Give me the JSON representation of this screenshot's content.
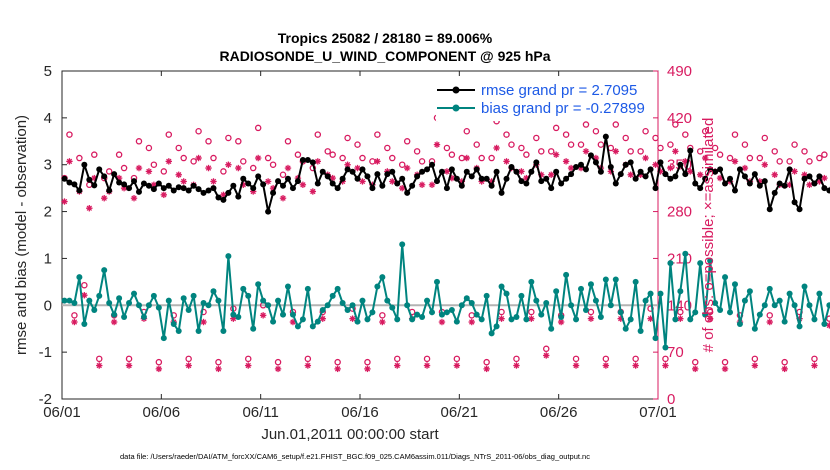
{
  "chart_data": {
    "type": "line",
    "title": "Tropics 25082 / 28180 = 89.006%",
    "subtitle": "RADIOSONDE_U_WIND_COMPONENT @ 925 hPa",
    "xlabel": "Jun.01,2011 00:00:00 start",
    "ylabel": "rmse and bias (model - observation)",
    "y2label": "# of obs: o=possible; ×=assimilated",
    "footer": "data file: /Users/raeder/DAI/ATM_forcXX/CAM6_setup/f.e21.FHIST_BGC.f09_025.CAM6assim.011/Diags_NTrS_2011-06/obs_diag_output.nc",
    "xlim": [
      0,
      30
    ],
    "ylim": [
      -2,
      5
    ],
    "y2lim": [
      0,
      490
    ],
    "x_ticks": [
      0,
      5,
      10,
      15,
      20,
      25,
      30
    ],
    "x_tick_labels": [
      "06/01",
      "06/06",
      "06/11",
      "06/16",
      "06/21",
      "06/26",
      "07/01"
    ],
    "y_ticks": [
      -2,
      -1,
      0,
      1,
      2,
      3,
      4,
      5
    ],
    "y_tick_labels": [
      "-2",
      "-1",
      "0",
      "1",
      "2",
      "3",
      "4",
      "5"
    ],
    "y2_ticks": [
      0,
      70,
      140,
      210,
      280,
      350,
      420,
      490
    ],
    "y2_tick_labels": [
      "0",
      "70",
      "140",
      "210",
      "280",
      "350",
      "420",
      "490"
    ],
    "reference_line_y": 0,
    "legend": {
      "placement": "top-right",
      "entries": [
        "rmse grand pr = 2.7095",
        "bias grand pr = -0.27899"
      ]
    },
    "colors": {
      "rmse": "#000000",
      "bias": "#00847f",
      "obs": "#d81b60",
      "legend_text": "#1d5ae6",
      "zero_line": "#b3b3b3"
    },
    "x_step_days": 0.25,
    "series": [
      {
        "name": "rmse grand pr = 2.7095",
        "axis": "left",
        "marker": "filled-circle",
        "values": [
          2.7,
          2.62,
          2.58,
          2.45,
          3.0,
          2.68,
          2.56,
          2.9,
          2.75,
          2.45,
          2.8,
          2.62,
          2.58,
          2.5,
          2.65,
          2.42,
          2.6,
          2.55,
          2.48,
          2.6,
          2.5,
          2.55,
          2.45,
          2.52,
          2.5,
          2.45,
          2.55,
          2.48,
          2.4,
          2.45,
          2.5,
          2.3,
          2.25,
          2.4,
          2.55,
          2.32,
          2.7,
          2.6,
          2.5,
          2.75,
          2.58,
          2.0,
          2.4,
          2.65,
          2.55,
          2.7,
          2.5,
          2.65,
          3.1,
          3.1,
          3.05,
          2.6,
          2.85,
          2.75,
          2.6,
          2.5,
          2.7,
          2.9,
          2.85,
          2.7,
          2.9,
          2.75,
          2.5,
          2.8,
          2.55,
          2.8,
          2.85,
          2.6,
          2.7,
          2.4,
          2.55,
          2.75,
          2.85,
          2.9,
          3.0,
          2.65,
          2.85,
          2.5,
          2.9,
          2.7,
          2.55,
          2.85,
          2.75,
          2.9,
          2.7,
          2.7,
          2.55,
          2.85,
          2.4,
          2.7,
          2.95,
          2.85,
          2.65,
          2.6,
          2.85,
          3.05,
          2.65,
          2.7,
          2.5,
          2.85,
          2.6,
          2.7,
          2.8,
          2.95,
          3.0,
          2.9,
          3.2,
          3.05,
          2.85,
          3.6,
          2.95,
          2.6,
          2.8,
          3.0,
          3.05,
          2.7,
          2.85,
          2.75,
          2.9,
          2.5,
          3.05,
          2.8,
          2.7,
          2.75,
          3.0,
          2.8,
          3.3,
          2.6,
          2.5,
          2.7,
          2.9,
          2.85,
          2.9,
          2.6,
          2.7,
          2.45,
          2.9,
          2.75,
          2.6,
          2.8,
          2.55,
          2.65,
          2.05,
          2.4,
          2.6,
          2.55,
          2.9,
          2.2,
          2.05,
          2.7,
          2.75,
          2.6,
          2.75,
          2.5,
          2.45,
          2.7,
          2.75,
          2.75,
          2.7,
          2.65,
          2.7,
          2.8,
          2.6,
          2.7,
          2.55,
          2.3,
          2.5
        ]
      },
      {
        "name": "bias grand pr = -0.27899",
        "axis": "left",
        "marker": "filled-circle",
        "values": [
          0.1,
          0.1,
          0.05,
          0.6,
          -0.4,
          0.1,
          -0.1,
          0.2,
          0.75,
          0.05,
          -0.2,
          0.15,
          -0.25,
          0.05,
          0.25,
          0.0,
          -0.25,
          0.0,
          0.2,
          -0.05,
          -0.7,
          0.1,
          -0.4,
          -0.55,
          0.15,
          -0.1,
          0.2,
          -0.55,
          0.05,
          0.0,
          0.3,
          0.1,
          -0.55,
          1.05,
          -0.2,
          -0.25,
          0.35,
          0.2,
          -0.5,
          0.45,
          0.1,
          0.0,
          -0.35,
          0.1,
          -0.2,
          0.4,
          -0.2,
          -0.45,
          -0.3,
          0.35,
          -0.45,
          -0.35,
          -0.1,
          0.0,
          0.2,
          0.35,
          0.05,
          -0.1,
          0.0,
          -0.35,
          0.1,
          -0.3,
          -0.15,
          0.4,
          0.6,
          0.1,
          -0.05,
          -0.3,
          1.3,
          0.0,
          -0.3,
          -0.2,
          -0.25,
          0.1,
          -0.15,
          0.5,
          -0.2,
          -0.15,
          -0.1,
          -0.35,
          0.0,
          0.15,
          0.05,
          -0.2,
          -0.3,
          0.2,
          -0.6,
          -0.45,
          0.4,
          0.25,
          -0.3,
          -0.25,
          0.2,
          -0.3,
          0.5,
          0.1,
          -0.2,
          0.05,
          -0.5,
          0.3,
          -0.25,
          0.65,
          0.0,
          -0.3,
          0.35,
          -0.1,
          0.45,
          0.1,
          -0.25,
          0.55,
          0.0,
          0.55,
          -0.15,
          -0.5,
          -0.3,
          0.5,
          -0.55,
          0.1,
          0.25,
          -0.7,
          0.25,
          -0.9,
          0.9,
          -0.3,
          0.3,
          1.1,
          -0.3,
          -0.15,
          0.9,
          -0.2,
          0.95,
          0.05,
          -0.1,
          0.6,
          -0.15,
          0.45,
          -0.4,
          0.1,
          0.3,
          -0.5,
          -0.2,
          0.0,
          0.35,
          0.0,
          0.1,
          -0.35,
          0.25,
          0.0,
          -0.45,
          0.4,
          0.0,
          -0.3,
          0.25,
          -0.4,
          0.0,
          0.1,
          -0.2,
          0.3,
          -0.3,
          0.05,
          -0.25,
          0.1,
          -0.2,
          -0.2,
          -0.25
        ]
      },
      {
        "name": "possible",
        "axis": "right",
        "marker": "open-circle",
        "values": [
          330,
          395,
          125,
          360,
          170,
          320,
          365,
          60,
          330,
          340,
          125,
          365,
          345,
          60,
          330,
          385,
          130,
          375,
          350,
          55,
          340,
          395,
          125,
          375,
          360,
          60,
          355,
          400,
          130,
          385,
          360,
          55,
          340,
          390,
          135,
          385,
          355,
          60,
          345,
          405,
          140,
          360,
          350,
          55,
          335,
          385,
          130,
          365,
          355,
          60,
          345,
          395,
          130,
          370,
          365,
          55,
          360,
          390,
          135,
          380,
          360,
          55,
          355,
          395,
          125,
          375,
          360,
          60,
          350,
          385,
          130,
          370,
          355,
          60,
          355,
          420,
          130,
          375,
          365,
          60,
          360,
          400,
          125,
          380,
          360,
          55,
          360,
          415,
          130,
          395,
          380,
          60,
          375,
          365,
          130,
          390,
          370,
          75,
          370,
          405,
          125,
          395,
          380,
          60,
          380,
          410,
          130,
          400,
          380,
          60,
          375,
          410,
          130,
          390,
          370,
          60,
          370,
          400,
          135,
          390,
          375,
          60,
          380,
          410,
          130,
          395,
          375,
          55,
          370,
          400,
          130,
          375,
          365,
          55,
          360,
          395,
          125,
          380,
          360,
          60,
          360,
          390,
          125,
          370,
          355,
          55,
          355,
          380,
          130,
          370,
          355,
          60,
          360,
          365,
          120,
          370,
          350,
          45,
          335,
          365,
          125,
          355,
          345,
          55,
          340,
          360,
          20,
          355
        ]
      },
      {
        "name": "assimilated",
        "axis": "right",
        "marker": "asterisk",
        "values": [
          295,
          355,
          115,
          310,
          155,
          285,
          330,
          50,
          300,
          310,
          115,
          330,
          315,
          50,
          300,
          345,
          120,
          340,
          320,
          45,
          305,
          355,
          115,
          335,
          325,
          50,
          320,
          360,
          115,
          345,
          325,
          45,
          305,
          350,
          120,
          345,
          320,
          50,
          310,
          360,
          125,
          325,
          315,
          45,
          300,
          345,
          115,
          330,
          320,
          50,
          310,
          355,
          120,
          335,
          330,
          45,
          325,
          350,
          120,
          345,
          325,
          45,
          320,
          355,
          115,
          340,
          325,
          50,
          315,
          345,
          120,
          335,
          320,
          50,
          320,
          380,
          115,
          340,
          330,
          50,
          325,
          360,
          115,
          345,
          325,
          45,
          325,
          375,
          120,
          355,
          345,
          50,
          340,
          330,
          120,
          350,
          335,
          65,
          335,
          365,
          115,
          355,
          345,
          50,
          345,
          370,
          120,
          360,
          345,
          50,
          340,
          370,
          120,
          350,
          335,
          50,
          335,
          360,
          120,
          350,
          340,
          50,
          345,
          370,
          120,
          355,
          340,
          45,
          335,
          360,
          120,
          340,
          330,
          45,
          325,
          355,
          115,
          345,
          325,
          50,
          325,
          350,
          115,
          335,
          320,
          45,
          320,
          340,
          120,
          335,
          320,
          50,
          325,
          330,
          110,
          335,
          315,
          38,
          300,
          330,
          115,
          320,
          310,
          45,
          305,
          325,
          10,
          320
        ]
      }
    ]
  }
}
